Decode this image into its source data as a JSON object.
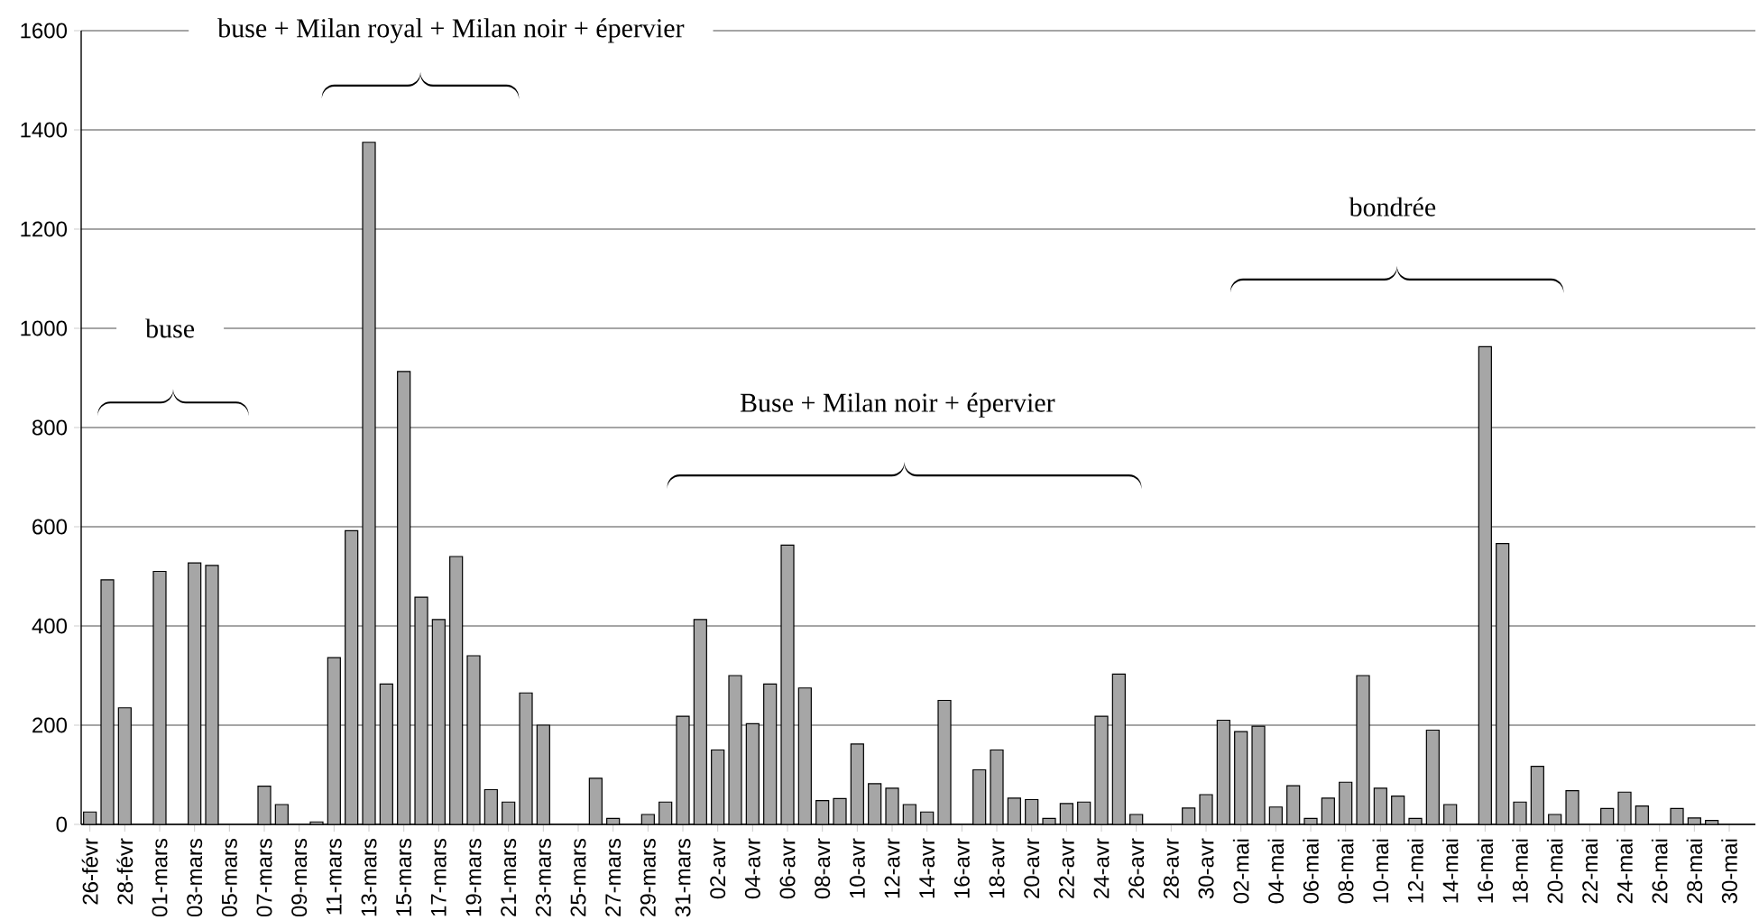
{
  "chart_data": {
    "type": "bar",
    "categories": [
      "26-févr",
      null,
      "28-févr",
      null,
      "01-mars",
      null,
      "03-mars",
      null,
      "05-mars",
      null,
      "07-mars",
      null,
      "09-mars",
      null,
      "11-mars",
      null,
      "13-mars",
      null,
      "15-mars",
      null,
      "17-mars",
      null,
      "19-mars",
      null,
      "21-mars",
      null,
      "23-mars",
      null,
      "25-mars",
      null,
      "27-mars",
      null,
      "29-mars",
      null,
      "31-mars",
      null,
      "02-avr",
      null,
      "04-avr",
      null,
      "06-avr",
      null,
      "08-avr",
      null,
      "10-avr",
      null,
      "12-avr",
      null,
      "14-avr",
      null,
      "16-avr",
      null,
      "18-avr",
      null,
      "20-avr",
      null,
      "22-avr",
      null,
      "24-avr",
      null,
      "26-avr",
      null,
      "28-avr",
      null,
      "30-avr",
      null,
      "02-mai",
      null,
      "04-mai",
      null,
      "06-mai",
      null,
      "08-mai",
      null,
      "10-mai",
      null,
      "12-mai",
      null,
      "14-mai",
      null,
      "16-mai",
      null,
      "18-mai",
      null,
      "20-mai",
      null,
      "22-mai",
      null,
      "24-mai",
      null,
      "26-mai",
      null,
      "28-mai",
      null,
      "30-mai",
      null
    ],
    "values": [
      25,
      493,
      235,
      0,
      510,
      0,
      527,
      522,
      0,
      0,
      77,
      40,
      0,
      5,
      336,
      592,
      1375,
      283,
      913,
      458,
      413,
      540,
      340,
      70,
      45,
      265,
      200,
      0,
      0,
      93,
      12,
      0,
      20,
      45,
      218,
      413,
      150,
      300,
      203,
      283,
      563,
      275,
      48,
      52,
      162,
      82,
      73,
      40,
      25,
      250,
      0,
      110,
      150,
      53,
      50,
      12,
      42,
      45,
      218,
      303,
      20,
      0,
      0,
      33,
      60,
      210,
      187,
      198,
      35,
      78,
      12,
      53,
      85,
      300,
      73,
      57,
      12,
      190,
      40,
      0,
      963,
      566,
      45,
      117,
      20,
      68,
      0,
      32,
      65,
      37,
      0,
      32,
      13,
      8,
      0,
      0
    ],
    "color": "#a6a6a6",
    "ylim": [
      0,
      1600
    ],
    "yticks": [
      0,
      200,
      400,
      600,
      800,
      1000,
      1200,
      1400,
      1600
    ],
    "grid": "y",
    "annotations": [
      "buse + Milan royal + Milan noir + épervier",
      "buse",
      "Buse + Milan noir + épervier",
      "bondrée"
    ]
  }
}
